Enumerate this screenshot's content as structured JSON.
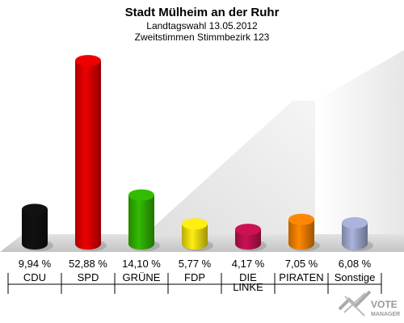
{
  "chart_data": {
    "type": "bar",
    "title": "Stadt Mülheim an der Ruhr",
    "subtitle_1": "Landtagswahl 13.05.2012",
    "subtitle_2": "Zweitstimmen Stimmbezirk 123",
    "categories": [
      "CDU",
      "SPD",
      "GRÜNE",
      "FDP",
      "DIE LINKE",
      "PIRATEN",
      "Sonstige"
    ],
    "category_lines": [
      [
        "CDU"
      ],
      [
        "SPD"
      ],
      [
        "GRÜNE"
      ],
      [
        "FDP"
      ],
      [
        "DIE",
        "LINKE"
      ],
      [
        "PIRATEN"
      ],
      [
        "Sonstige"
      ]
    ],
    "values": [
      9.94,
      52.88,
      14.1,
      5.77,
      4.17,
      7.05,
      6.08
    ],
    "value_labels": [
      "9,94 %",
      "52,88 %",
      "14,10 %",
      "5,77 %",
      "4,17 %",
      "7,05 %",
      "6,08 %"
    ],
    "colors": [
      "#111111",
      "#ee0000",
      "#33bb00",
      "#ffee11",
      "#cc1155",
      "#ff8800",
      "#aab4dd"
    ],
    "ylim": [
      0,
      55
    ],
    "grid": false,
    "legend": "none"
  },
  "logo": {
    "line1": "VOTE",
    "line2": "MANAGER"
  }
}
